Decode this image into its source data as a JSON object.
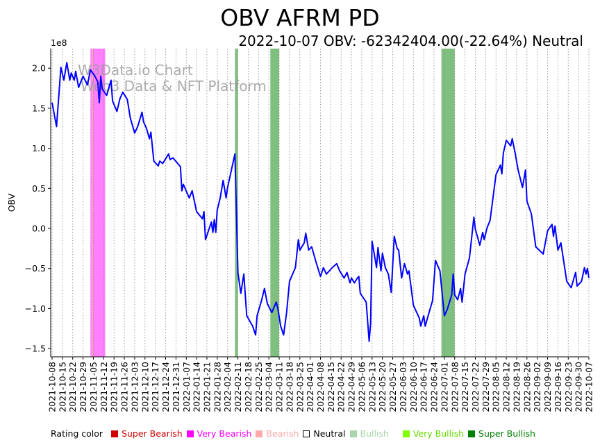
{
  "title": "OBV AFRM PD",
  "subtitle": "2022-10-07 OBV: -62342404.00(-22.64%) Neutral",
  "watermark": [
    "W3Data.io Chart",
    "Web3 Data & NFT Platform"
  ],
  "legend": {
    "label": "Rating color",
    "items": [
      {
        "label": "Super Bearish",
        "color": "#d00000",
        "text_color": "#d00000"
      },
      {
        "label": "Very Bearish",
        "color": "#ff00ff",
        "text_color": "#ff00ff"
      },
      {
        "label": "Bearish",
        "color": "#ffaaaa",
        "text_color": "#ffaaaa"
      },
      {
        "label": "Neutral",
        "color": "#ffffff",
        "text_color": "#000000"
      },
      {
        "label": "Bullish",
        "color": "#aad4aa",
        "text_color": "#aad4aa"
      },
      {
        "label": "Very Bullish",
        "color": "#80ff00",
        "text_color": "#66dd00"
      },
      {
        "label": "Super Bullish",
        "color": "#008000",
        "text_color": "#008000"
      }
    ]
  },
  "chart_data": {
    "type": "line",
    "title": "OBV AFRM PD",
    "ylabel": "OBV",
    "y_scale_label": "1e8",
    "x_unit": "days since 2021-10-08",
    "xlim": [
      0,
      364
    ],
    "ylim": [
      -1.62,
      2.24
    ],
    "yticks": [
      2.0,
      1.5,
      1.0,
      0.5,
      0.0,
      -0.5,
      -1.0,
      -1.5
    ],
    "ytick_labels": [
      "2.0",
      "1.5",
      "1.0",
      "0.5",
      "0.0",
      "−0.5",
      "−1.0",
      "−1.5"
    ],
    "xtick_labels": [
      "2021-10-08",
      "2021-10-15",
      "2021-10-22",
      "2021-10-29",
      "2021-11-05",
      "2021-11-12",
      "2021-11-19",
      "2021-11-26",
      "2021-12-03",
      "2021-12-10",
      "2021-12-17",
      "2021-12-24",
      "2021-12-31",
      "2022-01-07",
      "2022-01-14",
      "2022-01-21",
      "2022-01-28",
      "2022-02-04",
      "2022-02-11",
      "2022-02-18",
      "2022-02-25",
      "2022-03-04",
      "2022-03-11",
      "2022-03-18",
      "2022-03-25",
      "2022-04-01",
      "2022-04-08",
      "2022-04-15",
      "2022-04-22",
      "2022-04-29",
      "2022-05-06",
      "2022-05-13",
      "2022-05-20",
      "2022-05-27",
      "2022-06-03",
      "2022-06-10",
      "2022-06-17",
      "2022-06-24",
      "2022-07-01",
      "2022-07-08",
      "2022-07-15",
      "2022-07-22",
      "2022-07-29",
      "2022-08-05",
      "2022-08-12",
      "2022-08-19",
      "2022-08-26",
      "2022-09-02",
      "2022-09-09",
      "2022-09-16",
      "2022-09-23",
      "2022-09-30",
      "2022-10-07"
    ],
    "grid": "vertical dotted",
    "series": [
      {
        "name": "OBV",
        "color": "#0000ff",
        "x": [
          0,
          3,
          6,
          8,
          10,
          12,
          13,
          15,
          16,
          18,
          21,
          24,
          26,
          29,
          31,
          32,
          33,
          34,
          37,
          40,
          41,
          44,
          46,
          48,
          51,
          53,
          56,
          58,
          61,
          62,
          64,
          66,
          67,
          69,
          72,
          73,
          75,
          79,
          80,
          82,
          87,
          88,
          89,
          93,
          95,
          98,
          102,
          103,
          104,
          108,
          109,
          110,
          111,
          112,
          114,
          116,
          118,
          119,
          121,
          124,
          126,
          128,
          130,
          132,
          136,
          138,
          139,
          142,
          144,
          146,
          149,
          152,
          153,
          155,
          157,
          159,
          161,
          165,
          167,
          168,
          171,
          172,
          174,
          176,
          179,
          182,
          184,
          186,
          190,
          193,
          195,
          198,
          200,
          202,
          203,
          205,
          207,
          208,
          209,
          213,
          215,
          216,
          217,
          220,
          221,
          223,
          224,
          226,
          228,
          230,
          232,
          234,
          235,
          237,
          239,
          241,
          242,
          245,
          249,
          250,
          252,
          253,
          255,
          258,
          260,
          263,
          266,
          268,
          271,
          272,
          273,
          275,
          277,
          278,
          280,
          283,
          286,
          287,
          290,
          292,
          293,
          295,
          297,
          301,
          304,
          305,
          306,
          308,
          311,
          312,
          314,
          316,
          319,
          321,
          322,
          325,
          328,
          333,
          336,
          339,
          340,
          341,
          343,
          345,
          349,
          352,
          355,
          356,
          359,
          361,
          362,
          363,
          364
        ],
        "y": [
          1.57,
          1.27,
          2.01,
          1.85,
          2.07,
          1.85,
          1.94,
          1.85,
          1.96,
          1.76,
          1.9,
          1.79,
          1.98,
          1.9,
          1.83,
          1.57,
          1.9,
          1.74,
          1.66,
          1.85,
          1.59,
          1.46,
          1.62,
          1.7,
          1.61,
          1.38,
          1.19,
          1.27,
          1.45,
          1.33,
          1.25,
          1.12,
          1.2,
          0.84,
          0.78,
          0.84,
          0.81,
          0.93,
          0.86,
          0.88,
          0.77,
          0.47,
          0.55,
          0.38,
          0.47,
          0.21,
          0.12,
          0.21,
          -0.14,
          0.08,
          -0.05,
          0.11,
          -0.05,
          0.23,
          0.38,
          0.6,
          0.38,
          0.51,
          0.68,
          0.93,
          -0.55,
          -0.81,
          -0.57,
          -1.09,
          -1.22,
          -1.33,
          -1.09,
          -0.9,
          -0.75,
          -0.94,
          -1.05,
          -0.92,
          -0.99,
          -1.22,
          -1.33,
          -1.05,
          -0.66,
          -0.49,
          -0.14,
          -0.27,
          -0.18,
          -0.06,
          -0.27,
          -0.23,
          -0.42,
          -0.6,
          -0.49,
          -0.57,
          -0.49,
          -0.44,
          -0.53,
          -0.62,
          -0.55,
          -0.68,
          -0.62,
          -0.68,
          -0.62,
          -0.6,
          -0.81,
          -0.92,
          -1.41,
          -1.18,
          -0.16,
          -0.49,
          -0.24,
          -0.53,
          -0.31,
          -0.49,
          -0.57,
          -0.8,
          -0.1,
          -0.25,
          -0.27,
          -0.62,
          -0.44,
          -0.57,
          -0.53,
          -0.96,
          -1.12,
          -1.22,
          -1.09,
          -1.22,
          -1.09,
          -0.9,
          -0.4,
          -0.53,
          -1.09,
          -1.01,
          -0.83,
          -0.57,
          -0.83,
          -0.89,
          -0.75,
          -0.92,
          -0.57,
          -0.37,
          0.14,
          -0.01,
          -0.21,
          -0.05,
          -0.14,
          0.01,
          0.1,
          0.67,
          0.79,
          0.68,
          0.94,
          1.1,
          1.03,
          1.12,
          0.94,
          0.73,
          0.51,
          0.73,
          0.34,
          0.18,
          -0.23,
          -0.32,
          -0.03,
          0.05,
          -0.1,
          0.03,
          -0.27,
          -0.18,
          -0.66,
          -0.74,
          -0.55,
          -0.72,
          -0.66,
          -0.49,
          -0.57,
          -0.5,
          -0.62
        ]
      }
    ],
    "bands": [
      {
        "rating": "Very Bearish",
        "start": 26,
        "end": 36,
        "color": "#ff00ff"
      },
      {
        "rating": "Bearish",
        "start": 27,
        "end": 28,
        "color": "#ffaaaa"
      },
      {
        "rating": "Super Bullish",
        "start": 124,
        "end": 126,
        "color": "#008000"
      },
      {
        "rating": "Super Bullish",
        "start": 148,
        "end": 154,
        "color": "#008000"
      },
      {
        "rating": "Super Bullish",
        "start": 264,
        "end": 273,
        "color": "#008000"
      }
    ]
  }
}
